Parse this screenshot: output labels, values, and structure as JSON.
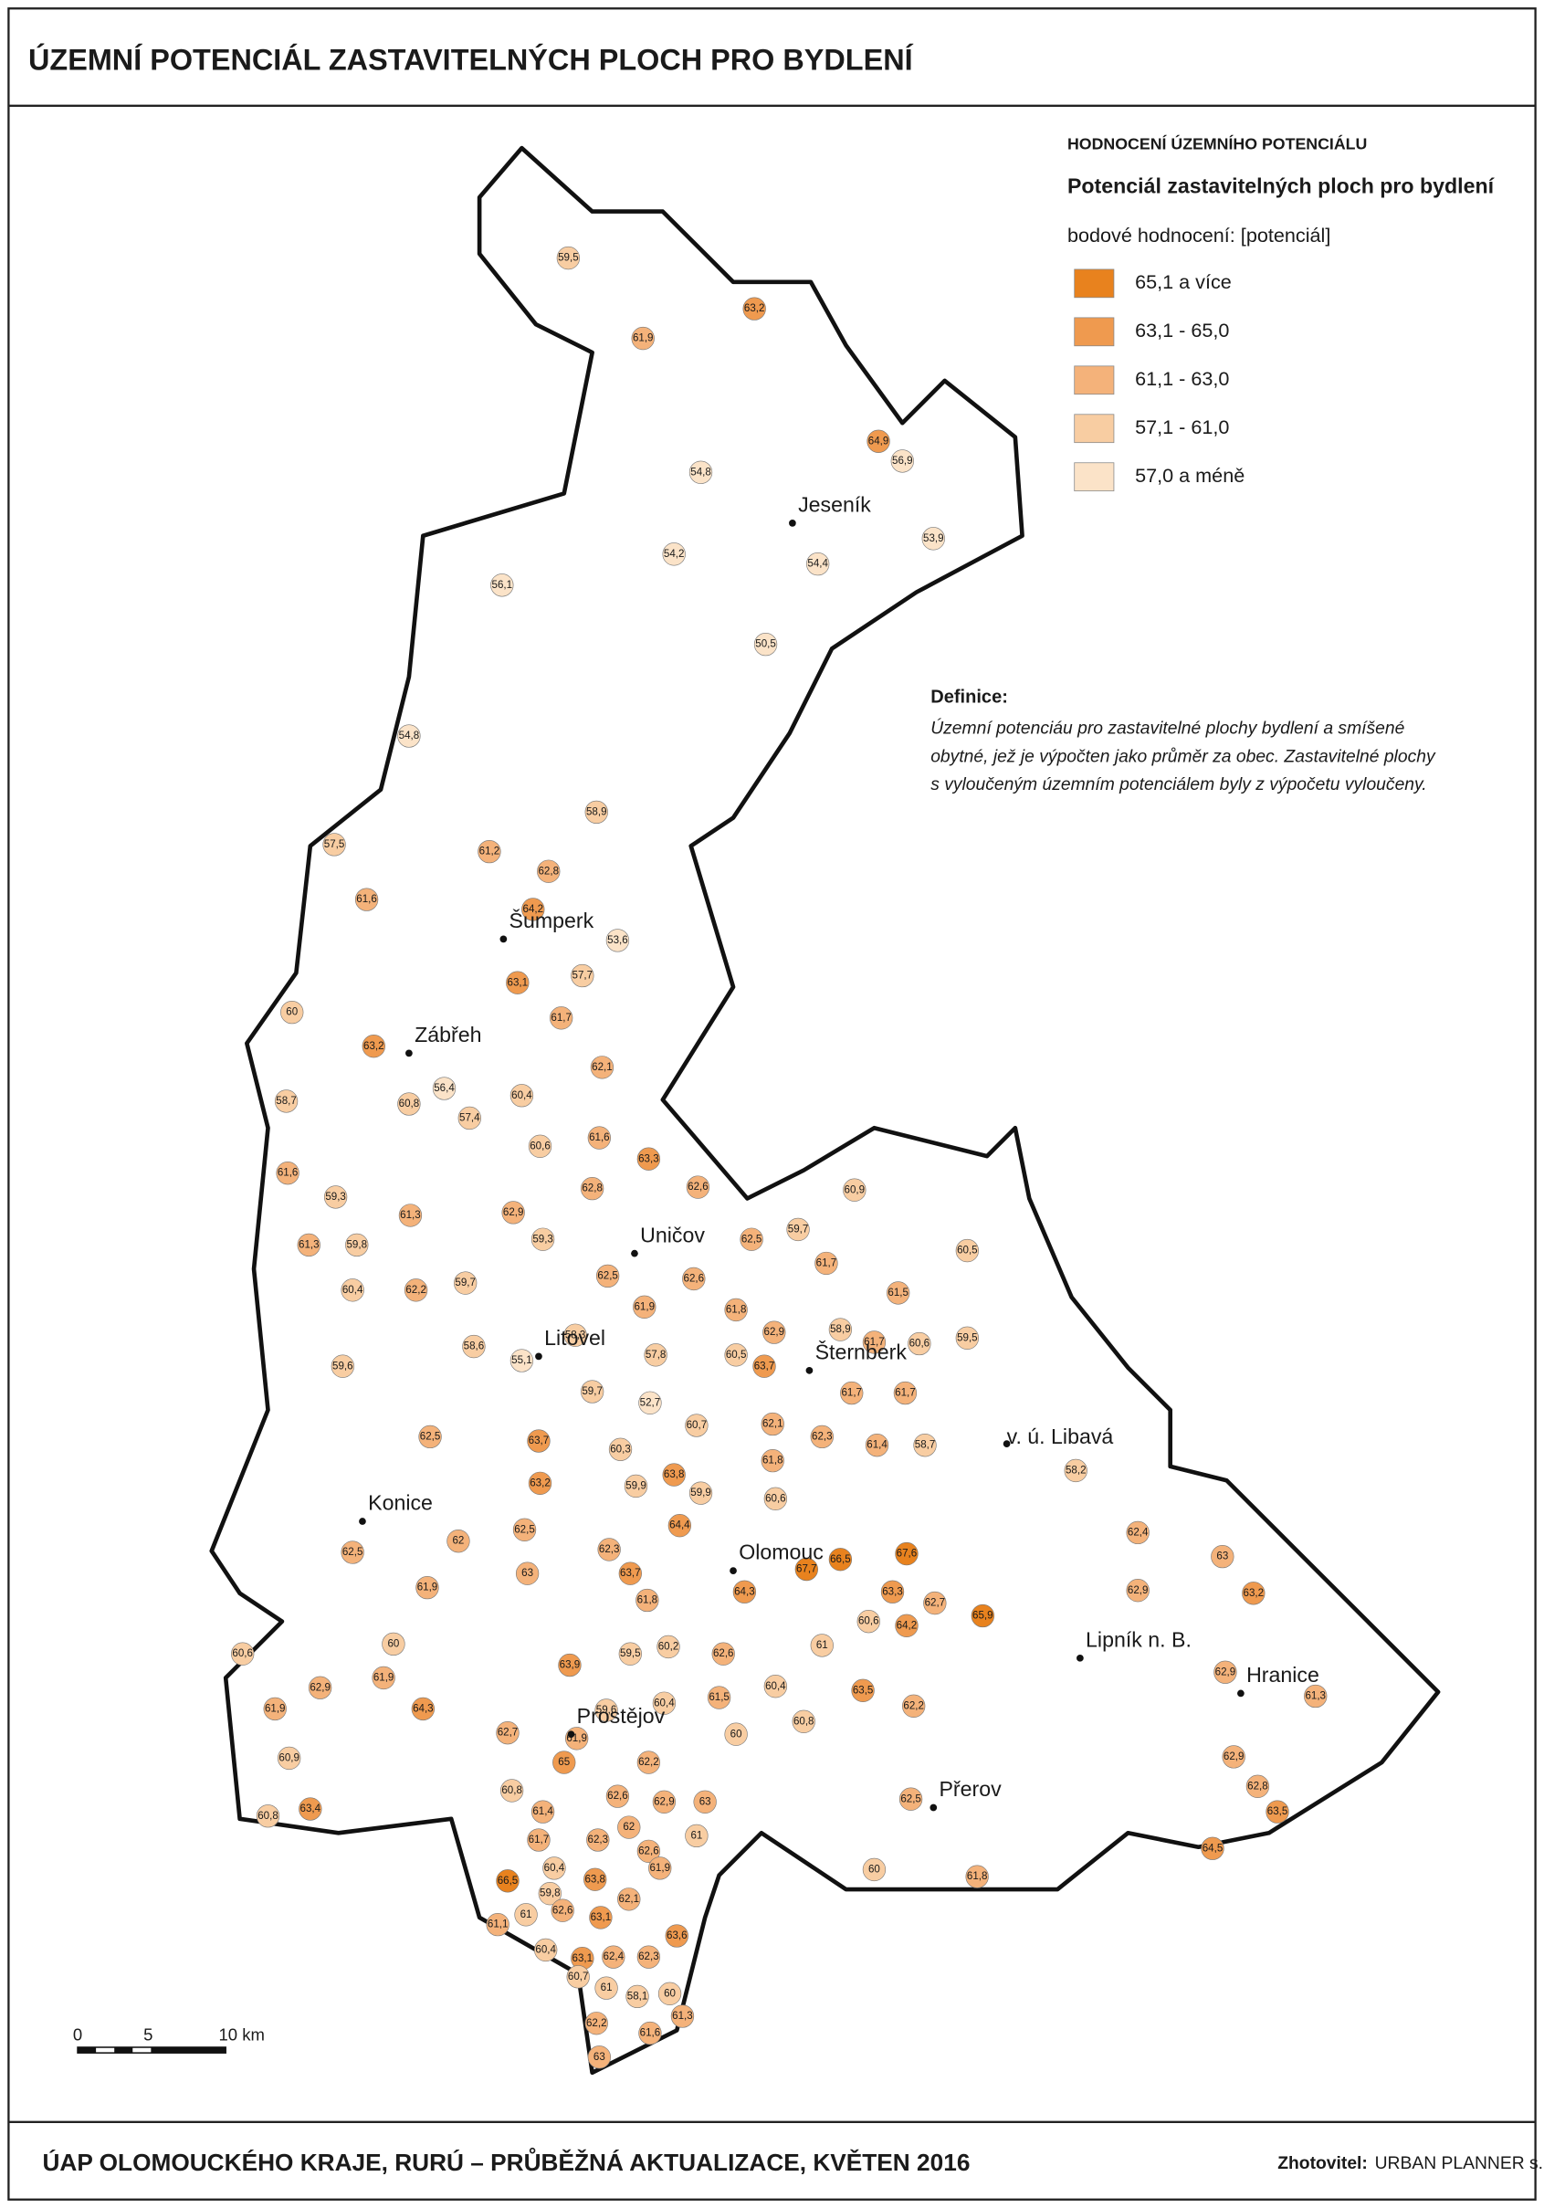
{
  "title": "ÚZEMNÍ POTENCIÁL ZASTAVITELNÝCH PLOCH PRO BYDLENÍ",
  "legend": {
    "heading": "HODNOCENÍ ÚZEMNÍHO POTENCIÁLU",
    "title": "Potenciál zastavitelných ploch pro bydlení",
    "unit": "bodové hodnocení: [potenciál]",
    "classes": [
      {
        "label": "65,1 a více",
        "min": 65.1,
        "color": "#e8821e"
      },
      {
        "label": "63,1 - 65,0",
        "min": 63.1,
        "max": 65.0,
        "color": "#ef9a4f"
      },
      {
        "label": "61,1 - 63,0",
        "min": 61.1,
        "max": 63.0,
        "color": "#f4b27a"
      },
      {
        "label": "57,1 - 61,0",
        "min": 57.1,
        "max": 61.0,
        "color": "#f8cda2"
      },
      {
        "label": "57,0 a méně",
        "max": 57.0,
        "color": "#fbe3c8"
      }
    ]
  },
  "definition": {
    "title": "Definice:",
    "lines": [
      "Územní potenciáu pro zastavitelné plochy bydlení a smíšené",
      "obytné, jež je výpočten jako průměr za obec. Zastavitelné plochy",
      "s vyloučeným územním potenciálem byly z výpočetu vyloučeny."
    ]
  },
  "towns": [
    "Jeseník",
    "Šumperk",
    "Zábřeh",
    "Uničov",
    "Litovel",
    "Šternberk",
    "v. ú. Libavá",
    "Konice",
    "Olomouc",
    "Lipník n. B.",
    "Hranice",
    "Prostějov",
    "Přerov"
  ],
  "scale": [
    "0",
    "5",
    "10 km"
  ],
  "footer": {
    "text": "ÚAP OLOMOUCKÉHO KRAJE, RURÚ – PRŮBĚŽNÁ AKTUALIZACE, KVĚTEN 2016",
    "author_label": "Zhotovitel:",
    "author": "URBAN PLANNER s.r.o."
  },
  "municipalities": [
    {
      "value": 59.5,
      "label": "59,5"
    },
    {
      "value": 63.2,
      "label": "63,2"
    },
    {
      "value": 61.9,
      "label": "61,9"
    },
    {
      "value": 64.9,
      "label": "64,9"
    },
    {
      "value": 56.9,
      "label": "56,9"
    },
    {
      "value": 54.8,
      "label": "54,8"
    },
    {
      "value": 53.9,
      "label": "53,9"
    },
    {
      "value": 54.2,
      "label": "54,2"
    },
    {
      "value": 54.4,
      "label": "54,4"
    },
    {
      "value": 56.1,
      "label": "56,1"
    },
    {
      "value": 50.5,
      "label": "50,5"
    },
    {
      "value": 54.8,
      "label": "54,8"
    },
    {
      "value": 58.9,
      "label": "58,9"
    },
    {
      "value": 57.5,
      "label": "57,5"
    },
    {
      "value": 61.2,
      "label": "61,2"
    },
    {
      "value": 62.8,
      "label": "62,8"
    },
    {
      "value": 61.6,
      "label": "61,6"
    },
    {
      "value": 64.2,
      "label": "64,2"
    },
    {
      "value": 53.6,
      "label": "53,6"
    },
    {
      "value": 57.7,
      "label": "57,7"
    },
    {
      "value": 63.1,
      "label": "63,1"
    },
    {
      "value": 61.7,
      "label": "61,7"
    },
    {
      "value": 60,
      "label": "60"
    },
    {
      "value": 63.2,
      "label": "63,2"
    },
    {
      "value": 62.1,
      "label": "62,1"
    },
    {
      "value": 58.7,
      "label": "58,7"
    },
    {
      "value": 60.8,
      "label": "60,8"
    },
    {
      "value": 56.4,
      "label": "56,4"
    },
    {
      "value": 60.4,
      "label": "60,4"
    },
    {
      "value": 57.4,
      "label": "57,4"
    },
    {
      "value": 61.6,
      "label": "61,6"
    },
    {
      "value": 60.6,
      "label": "60,6"
    },
    {
      "value": 63.3,
      "label": "63,3"
    },
    {
      "value": 61.6,
      "label": "61,6"
    },
    {
      "value": 59.3,
      "label": "59,3"
    },
    {
      "value": 61.3,
      "label": "61,3"
    },
    {
      "value": 62.8,
      "label": "62,8"
    },
    {
      "value": 62.6,
      "label": "62,6"
    },
    {
      "value": 60.9,
      "label": "60,9"
    },
    {
      "value": 62.9,
      "label": "62,9"
    },
    {
      "value": 61.3,
      "label": "61,3"
    },
    {
      "value": 59.8,
      "label": "59,8"
    },
    {
      "value": 59.3,
      "label": "59,3"
    },
    {
      "value": 62.5,
      "label": "62,5"
    },
    {
      "value": 60.5,
      "label": "60,5"
    },
    {
      "value": 59.7,
      "label": "59,7"
    },
    {
      "value": 61.7,
      "label": "61,7"
    },
    {
      "value": 60.4,
      "label": "60,4"
    },
    {
      "value": 62.2,
      "label": "62,2"
    },
    {
      "value": 59.7,
      "label": "59,7"
    },
    {
      "value": 62.5,
      "label": "62,5"
    },
    {
      "value": 62.6,
      "label": "62,6"
    },
    {
      "value": 61.5,
      "label": "61,5"
    },
    {
      "value": 61.8,
      "label": "61,8"
    },
    {
      "value": 61.9,
      "label": "61,9"
    },
    {
      "value": 58.9,
      "label": "58,9"
    },
    {
      "value": 62.9,
      "label": "62,9"
    },
    {
      "value": 59.6,
      "label": "59,6"
    },
    {
      "value": 58.6,
      "label": "58,6"
    },
    {
      "value": 58.3,
      "label": "58,3"
    },
    {
      "value": 55.1,
      "label": "55,1"
    },
    {
      "value": 57.8,
      "label": "57,8"
    },
    {
      "value": 60.5,
      "label": "60,5"
    },
    {
      "value": 63.7,
      "label": "63,7"
    },
    {
      "value": 61.7,
      "label": "61,7"
    },
    {
      "value": 60.6,
      "label": "60,6"
    },
    {
      "value": 59.5,
      "label": "59,5"
    },
    {
      "value": 59.7,
      "label": "59,7"
    },
    {
      "value": 61.7,
      "label": "61,7"
    },
    {
      "value": 61.7,
      "label": "61,7"
    },
    {
      "value": 62.5,
      "label": "62,5"
    },
    {
      "value": 63.7,
      "label": "63,7"
    },
    {
      "value": 52.7,
      "label": "52,7"
    },
    {
      "value": 60.7,
      "label": "60,7"
    },
    {
      "value": 62.1,
      "label": "62,1"
    },
    {
      "value": 62.3,
      "label": "62,3"
    },
    {
      "value": 61.4,
      "label": "61,4"
    },
    {
      "value": 58.7,
      "label": "58,7"
    },
    {
      "value": 58.2,
      "label": "58,2"
    },
    {
      "value": 60.3,
      "label": "60,3"
    },
    {
      "value": 61.8,
      "label": "61,8"
    },
    {
      "value": 63.2,
      "label": "63,2"
    },
    {
      "value": 59.9,
      "label": "59,9"
    },
    {
      "value": 63.8,
      "label": "63,8"
    },
    {
      "value": 59.9,
      "label": "59,9"
    },
    {
      "value": 60.6,
      "label": "60,6"
    },
    {
      "value": 62.4,
      "label": "62,4"
    },
    {
      "value": 62.5,
      "label": "62,5"
    },
    {
      "value": 64.4,
      "label": "64,4"
    },
    {
      "value": 62.5,
      "label": "62,5"
    },
    {
      "value": 62,
      "label": "62"
    },
    {
      "value": 62.3,
      "label": "62,3"
    },
    {
      "value": 63,
      "label": "63"
    },
    {
      "value": 63,
      "label": "63"
    },
    {
      "value": 63.7,
      "label": "63,7"
    },
    {
      "value": 67.7,
      "label": "67,7"
    },
    {
      "value": 66.5,
      "label": "66,5"
    },
    {
      "value": 67.6,
      "label": "67,6"
    },
    {
      "value": 61.9,
      "label": "61,9"
    },
    {
      "value": 64.3,
      "label": "64,3"
    },
    {
      "value": 63.3,
      "label": "63,3"
    },
    {
      "value": 63.2,
      "label": "63,2"
    },
    {
      "value": 61.8,
      "label": "61,8"
    },
    {
      "value": 62.7,
      "label": "62,7"
    },
    {
      "value": 65.9,
      "label": "65,9"
    },
    {
      "value": 60.6,
      "label": "60,6"
    },
    {
      "value": 64.2,
      "label": "64,2"
    },
    {
      "value": 62.9,
      "label": "62,9"
    },
    {
      "value": 60,
      "label": "60"
    },
    {
      "value": 59.5,
      "label": "59,5"
    },
    {
      "value": 60.2,
      "label": "60,2"
    },
    {
      "value": 62.6,
      "label": "62,6"
    },
    {
      "value": 61,
      "label": "61"
    },
    {
      "value": 60.6,
      "label": "60,6"
    },
    {
      "value": 62.9,
      "label": "62,9"
    },
    {
      "value": 61.9,
      "label": "61,9"
    },
    {
      "value": 63.9,
      "label": "63,9"
    },
    {
      "value": 61.5,
      "label": "61,5"
    },
    {
      "value": 60.4,
      "label": "60,4"
    },
    {
      "value": 63.5,
      "label": "63,5"
    },
    {
      "value": 62.2,
      "label": "62,2"
    },
    {
      "value": 61.3,
      "label": "61,3"
    },
    {
      "value": 62.9,
      "label": "62,9"
    },
    {
      "value": 61.9,
      "label": "61,9"
    },
    {
      "value": 64.3,
      "label": "64,3"
    },
    {
      "value": 59.6,
      "label": "59,6"
    },
    {
      "value": 60.4,
      "label": "60,4"
    },
    {
      "value": 62.7,
      "label": "62,7"
    },
    {
      "value": 60,
      "label": "60"
    },
    {
      "value": 60.8,
      "label": "60,8"
    },
    {
      "value": 61.9,
      "label": "61,9"
    },
    {
      "value": 65,
      "label": "65"
    },
    {
      "value": 62.2,
      "label": "62,2"
    },
    {
      "value": 60.9,
      "label": "60,9"
    },
    {
      "value": 62.9,
      "label": "62,9"
    },
    {
      "value": 62.8,
      "label": "62,8"
    },
    {
      "value": 63.4,
      "label": "63,4"
    },
    {
      "value": 60.8,
      "label": "60,8"
    },
    {
      "value": 60.8,
      "label": "60,8"
    },
    {
      "value": 62.6,
      "label": "62,6"
    },
    {
      "value": 62.9,
      "label": "62,9"
    },
    {
      "value": 63,
      "label": "63"
    },
    {
      "value": 62.5,
      "label": "62,5"
    },
    {
      "value": 61.4,
      "label": "61,4"
    },
    {
      "value": 63.5,
      "label": "63,5"
    },
    {
      "value": 62,
      "label": "62"
    },
    {
      "value": 61,
      "label": "61"
    },
    {
      "value": 61.7,
      "label": "61,7"
    },
    {
      "value": 62.3,
      "label": "62,3"
    },
    {
      "value": 62.6,
      "label": "62,6"
    },
    {
      "value": 64.5,
      "label": "64,5"
    },
    {
      "value": 60,
      "label": "60"
    },
    {
      "value": 61.8,
      "label": "61,8"
    },
    {
      "value": 66.5,
      "label": "66,5"
    },
    {
      "value": 60.4,
      "label": "60,4"
    },
    {
      "value": 63.8,
      "label": "63,8"
    },
    {
      "value": 61.9,
      "label": "61,9"
    },
    {
      "value": 59.8,
      "label": "59,8"
    },
    {
      "value": 62.1,
      "label": "62,1"
    },
    {
      "value": 62.6,
      "label": "62,6"
    },
    {
      "value": 63.1,
      "label": "63,1"
    },
    {
      "value": 61.1,
      "label": "61,1"
    },
    {
      "value": 61,
      "label": "61"
    },
    {
      "value": 63.6,
      "label": "63,6"
    },
    {
      "value": 60.4,
      "label": "60,4"
    },
    {
      "value": 62.3,
      "label": "62,3"
    },
    {
      "value": 63.1,
      "label": "63,1"
    },
    {
      "value": 62.4,
      "label": "62,4"
    },
    {
      "value": 60.7,
      "label": "60,7"
    },
    {
      "value": 61,
      "label": "61"
    },
    {
      "value": 58.1,
      "label": "58,1"
    },
    {
      "value": 60,
      "label": "60"
    },
    {
      "value": 61.3,
      "label": "61,3"
    },
    {
      "value": 62.2,
      "label": "62,2"
    },
    {
      "value": 61.6,
      "label": "61,6"
    },
    {
      "value": 63,
      "label": "63"
    }
  ]
}
